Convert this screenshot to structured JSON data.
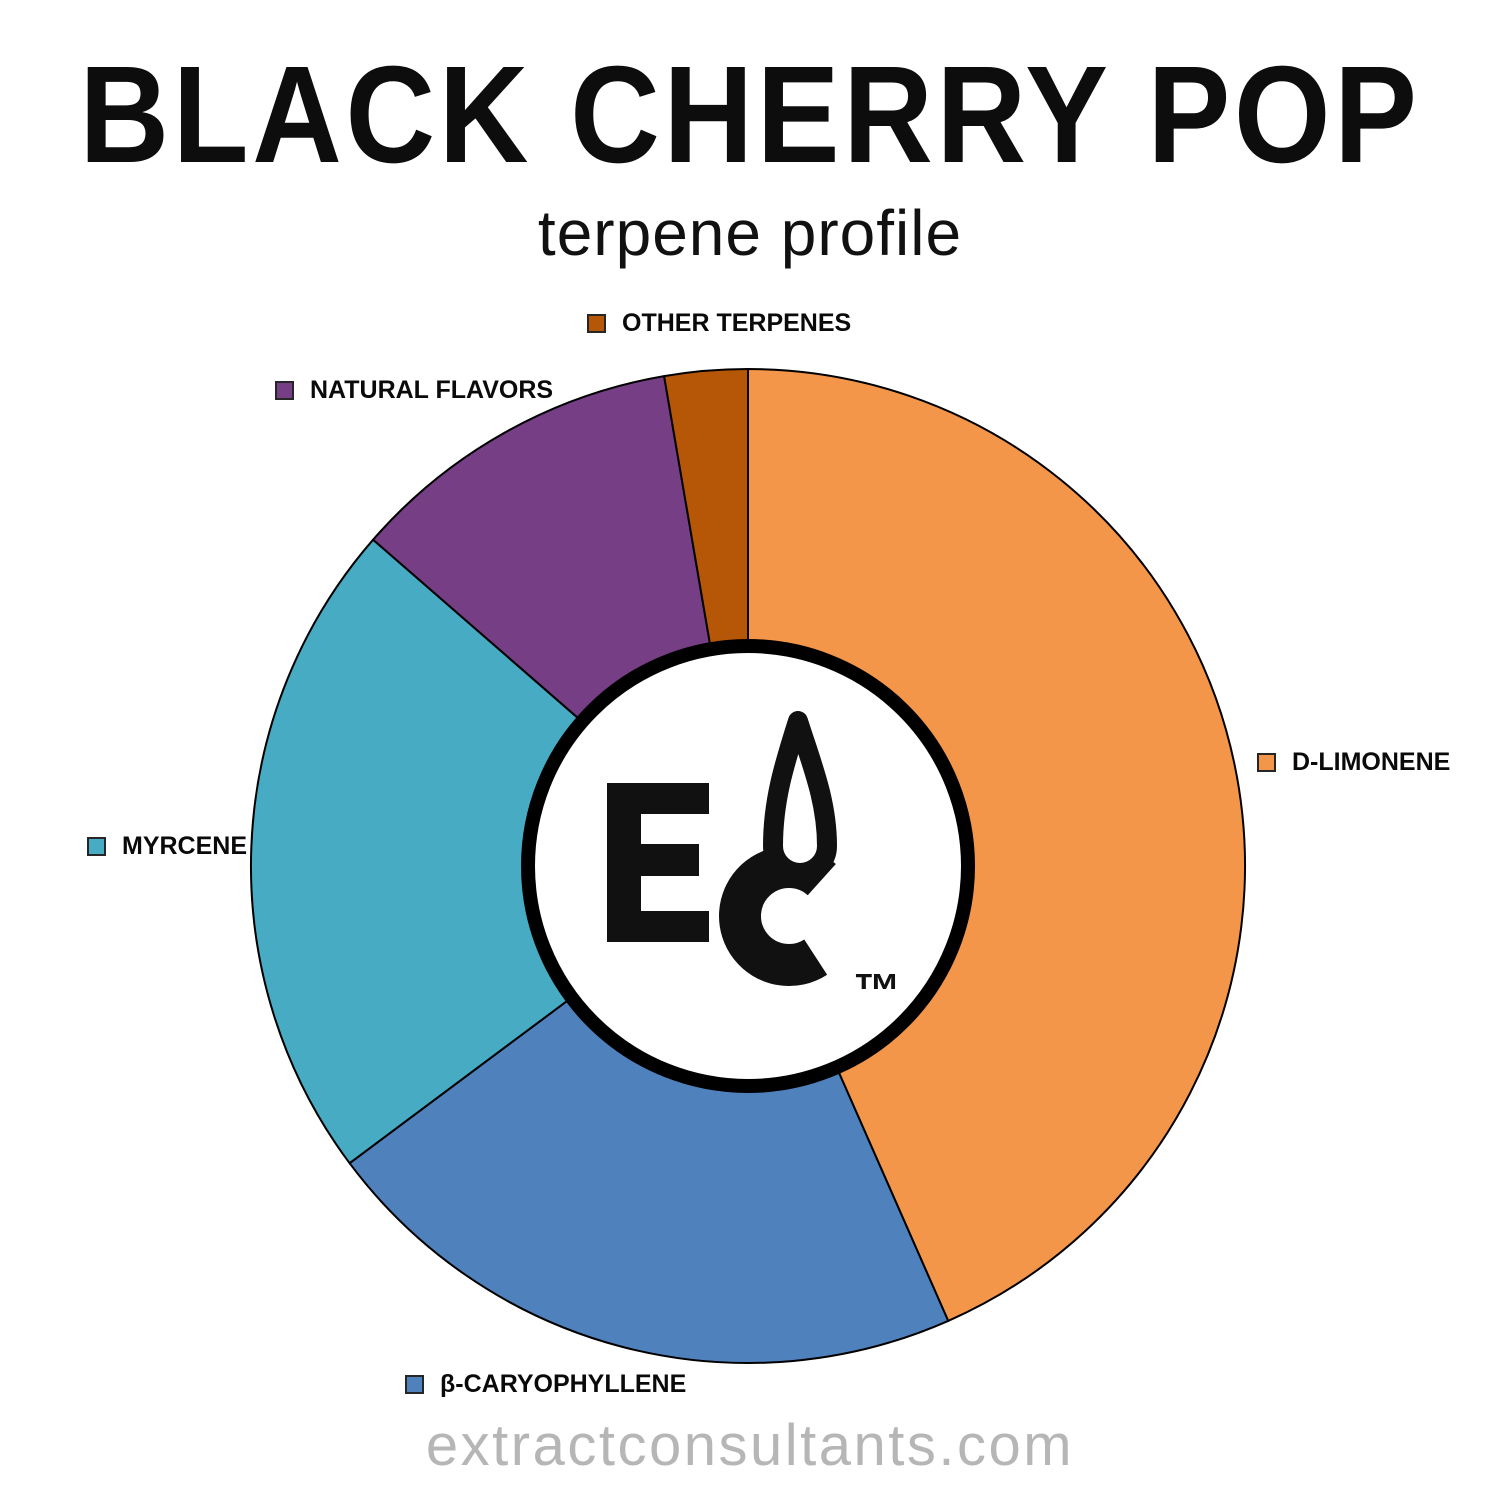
{
  "page": {
    "title": "BLACK CHERRY POP",
    "subtitle": "terpene profile",
    "footer": "extractconsultants.com"
  },
  "logo": {
    "letters": "EC",
    "trademark": "™"
  },
  "chart_data": {
    "type": "pie",
    "title": "BLACK CHERRY POP terpene profile",
    "donut": true,
    "start_angle_deg": 0,
    "direction": "clockwise",
    "legend_position": "callout labels around pie",
    "note": "No numeric labels shown in image; values are percentages estimated from arc angles.",
    "outline_color": "#000000",
    "center_hole": {
      "fill": "#FFFFFF",
      "border_color": "#000000"
    },
    "segments": [
      {
        "label": "D-LIMONENE",
        "value": 43.4,
        "color": "#F4964A"
      },
      {
        "label": "β-CARYOPHYLLENE",
        "value": 21.4,
        "color": "#4F81BD"
      },
      {
        "label": "MYRCENE",
        "value": 21.6,
        "color": "#46ABC3"
      },
      {
        "label": "NATURAL FLAVORS",
        "value": 10.9,
        "color": "#753E85"
      },
      {
        "label": "OTHER TERPENES",
        "value": 2.7,
        "color": "#B65708"
      }
    ]
  }
}
